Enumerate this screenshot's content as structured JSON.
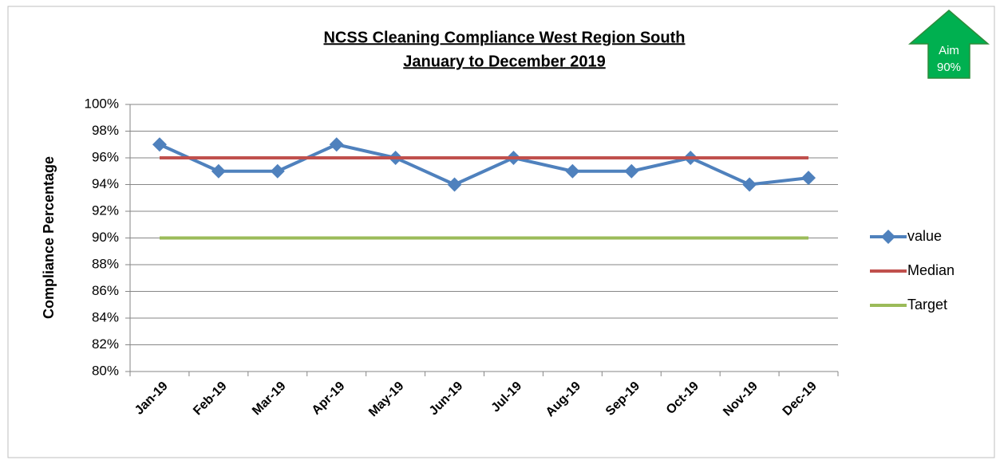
{
  "chart_data": {
    "type": "line",
    "title": "NCSS Cleaning Compliance West Region South",
    "subtitle": "January to December 2019",
    "y_label": "Compliance Percentage",
    "annotations": [
      "Aim",
      "90%"
    ],
    "categories": [
      "Jan-19",
      "Feb-19",
      "Mar-19",
      "Apr-19",
      "May-19",
      "Jun-19",
      "Jul-19",
      "Aug-19",
      "Sep-19",
      "Oct-19",
      "Nov-19",
      "Dec-19"
    ],
    "series": [
      {
        "name": "value",
        "color": "#4f81bd",
        "marker": "diamond",
        "values": [
          97,
          95,
          95,
          97,
          96,
          94,
          96,
          95,
          95,
          96,
          94,
          94.5
        ]
      },
      {
        "name": "Median",
        "color": "#c0504d",
        "values": [
          96,
          96,
          96,
          96,
          96,
          96,
          96,
          96,
          96,
          96,
          96,
          96
        ]
      },
      {
        "name": "Target",
        "color": "#9bbb59",
        "values": [
          90,
          90,
          90,
          90,
          90,
          90,
          90,
          90,
          90,
          90,
          90,
          90
        ]
      }
    ],
    "ylim": [
      80,
      100
    ],
    "yticks": [
      {
        "value": 80,
        "label": "80%"
      },
      {
        "value": 82,
        "label": "82%"
      },
      {
        "value": 84,
        "label": "84%"
      },
      {
        "value": 86,
        "label": "86%"
      },
      {
        "value": 88,
        "label": "88%"
      },
      {
        "value": 90,
        "label": "90%"
      },
      {
        "value": 92,
        "label": "92%"
      },
      {
        "value": 94,
        "label": "94%"
      },
      {
        "value": 96,
        "label": "96%"
      },
      {
        "value": 98,
        "label": "98%"
      },
      {
        "value": 100,
        "label": "100%"
      }
    ],
    "grid": true,
    "legend": "right"
  }
}
